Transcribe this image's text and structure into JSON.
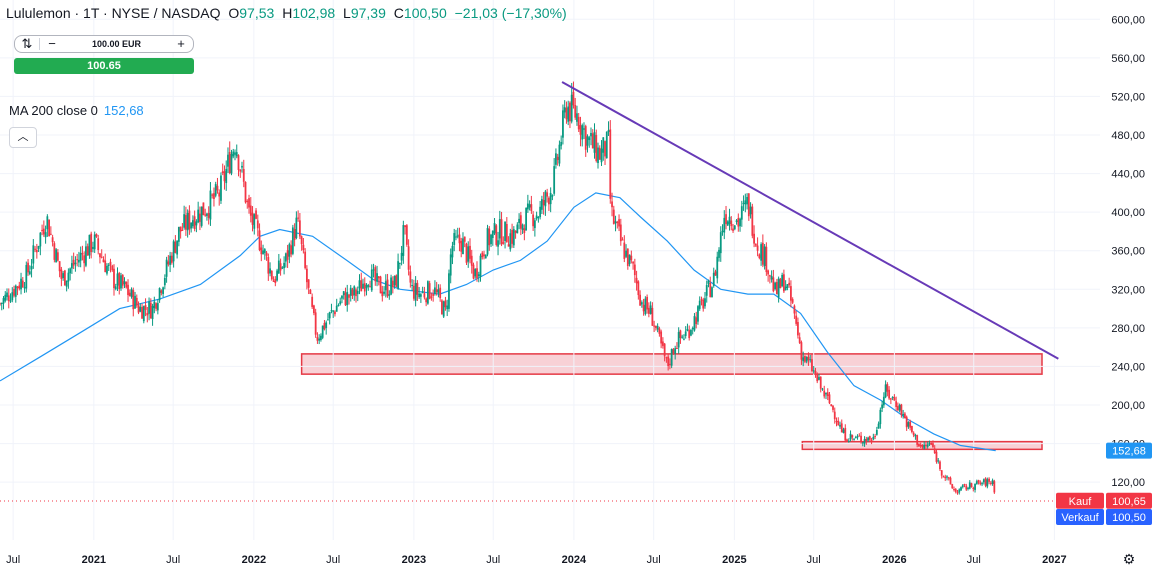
{
  "header": {
    "title": "Lululemon · 1T · NYSE / NASDAQ",
    "o_label": "O",
    "o_value": "97,53",
    "h_label": "H",
    "h_value": "102,98",
    "l_label": "L",
    "l_value": "97,39",
    "c_label": "C",
    "c_value": "100,50",
    "change": "−21,03 (−17,30%)"
  },
  "order": {
    "quantity": "100.00 EUR",
    "minus": "−",
    "plus": "+",
    "buy_value": "100.65"
  },
  "indicator": {
    "label": "MA 200 close 0",
    "value": "152,68"
  },
  "colors": {
    "up": "#089981",
    "down": "#f23645",
    "ma": "#2196f3",
    "trend": "#673ab7",
    "zone_fill": "#f7c9cf",
    "zone_stroke": "#e53945",
    "kauf": "#f23645",
    "verkauf": "#2962ff"
  },
  "chart_data": {
    "type": "line",
    "y_axis": {
      "min": 60,
      "max": 620,
      "ticks": [
        "600,00",
        "560,00",
        "520,00",
        "480,00",
        "440,00",
        "400,00",
        "360,00",
        "320,00",
        "280,00",
        "240,00",
        "200,00",
        "160,00",
        "120,00"
      ]
    },
    "x_axis": {
      "ticks": [
        {
          "label": "Jul",
          "date": "2020-07-01"
        },
        {
          "label": "2021",
          "date": "2021-01-01"
        },
        {
          "label": "Jul",
          "date": "2021-07-01"
        },
        {
          "label": "2022",
          "date": "2022-01-01"
        },
        {
          "label": "Jul",
          "date": "2022-07-01"
        },
        {
          "label": "2023",
          "date": "2023-01-01"
        },
        {
          "label": "Jul",
          "date": "2023-07-01"
        },
        {
          "label": "2024",
          "date": "2024-01-01"
        },
        {
          "label": "Jul",
          "date": "2024-07-01"
        },
        {
          "label": "2025",
          "date": "2025-01-01"
        },
        {
          "label": "Jul",
          "date": "2025-07-01"
        },
        {
          "label": "2026",
          "date": "2026-01-01"
        },
        {
          "label": "Jul",
          "date": "2026-07-01"
        },
        {
          "label": "2027",
          "date": "2027-01-01"
        }
      ]
    },
    "series": [
      {
        "name": "Lululemon",
        "points": [
          [
            "2020-06-01",
            305
          ],
          [
            "2020-08-01",
            335
          ],
          [
            "2020-09-15",
            395
          ],
          [
            "2020-10-20",
            330
          ],
          [
            "2020-11-15",
            345
          ],
          [
            "2021-01-01",
            370
          ],
          [
            "2021-02-15",
            330
          ],
          [
            "2021-03-15",
            320
          ],
          [
            "2021-04-15",
            300
          ],
          [
            "2021-05-15",
            300
          ],
          [
            "2021-06-15",
            340
          ],
          [
            "2021-07-15",
            380
          ],
          [
            "2021-08-15",
            395
          ],
          [
            "2021-09-15",
            405
          ],
          [
            "2021-10-15",
            420
          ],
          [
            "2021-11-20",
            475
          ],
          [
            "2021-12-20",
            400
          ],
          [
            "2022-01-15",
            370
          ],
          [
            "2022-02-15",
            330
          ],
          [
            "2022-03-15",
            350
          ],
          [
            "2022-04-10",
            390
          ],
          [
            "2022-05-10",
            305
          ],
          [
            "2022-05-25",
            270
          ],
          [
            "2022-06-20",
            290
          ],
          [
            "2022-07-20",
            310
          ],
          [
            "2022-08-20",
            315
          ],
          [
            "2022-09-20",
            335
          ],
          [
            "2022-10-20",
            320
          ],
          [
            "2022-11-20",
            325
          ],
          [
            "2022-12-10",
            380
          ],
          [
            "2022-12-25",
            320
          ],
          [
            "2023-01-15",
            315
          ],
          [
            "2023-02-15",
            320
          ],
          [
            "2023-03-15",
            295
          ],
          [
            "2023-03-28",
            365
          ],
          [
            "2023-04-20",
            370
          ],
          [
            "2023-05-20",
            335
          ],
          [
            "2023-06-15",
            370
          ],
          [
            "2023-07-15",
            380
          ],
          [
            "2023-08-15",
            375
          ],
          [
            "2023-09-15",
            395
          ],
          [
            "2023-10-15",
            400
          ],
          [
            "2023-11-15",
            430
          ],
          [
            "2023-12-15",
            510
          ],
          [
            "2024-01-10",
            500
          ],
          [
            "2024-02-01",
            475
          ],
          [
            "2024-03-01",
            460
          ],
          [
            "2024-03-20",
            470
          ],
          [
            "2024-03-25",
            400
          ],
          [
            "2024-04-20",
            365
          ],
          [
            "2024-05-15",
            340
          ],
          [
            "2024-06-05",
            305
          ],
          [
            "2024-06-25",
            295
          ],
          [
            "2024-07-15",
            265
          ],
          [
            "2024-08-01",
            240
          ],
          [
            "2024-08-20",
            265
          ],
          [
            "2024-09-15",
            275
          ],
          [
            "2024-10-15",
            300
          ],
          [
            "2024-11-15",
            330
          ],
          [
            "2024-12-10",
            400
          ],
          [
            "2025-01-10",
            390
          ],
          [
            "2025-02-01",
            410
          ],
          [
            "2025-02-20",
            370
          ],
          [
            "2025-03-15",
            350
          ],
          [
            "2025-04-05",
            315
          ],
          [
            "2025-04-25",
            330
          ],
          [
            "2025-05-15",
            300
          ],
          [
            "2025-06-05",
            250
          ],
          [
            "2025-06-25",
            240
          ],
          [
            "2025-07-20",
            215
          ],
          [
            "2025-08-15",
            195
          ],
          [
            "2025-09-05",
            170
          ],
          [
            "2025-10-01",
            165
          ],
          [
            "2025-10-25",
            165
          ],
          [
            "2025-11-15",
            165
          ],
          [
            "2025-12-10",
            215
          ],
          [
            "2026-01-10",
            200
          ],
          [
            "2026-02-05",
            175
          ],
          [
            "2026-03-05",
            155
          ],
          [
            "2026-03-25",
            160
          ],
          [
            "2026-04-20",
            130
          ],
          [
            "2026-05-20",
            110
          ],
          [
            "2026-06-15",
            115
          ],
          [
            "2026-07-10",
            118
          ],
          [
            "2026-08-15",
            121
          ],
          [
            "2026-08-20",
            100.5
          ]
        ]
      },
      {
        "name": "MA 200 close 0",
        "points": [
          [
            "2020-06-01",
            225
          ],
          [
            "2020-09-01",
            250
          ],
          [
            "2020-12-01",
            275
          ],
          [
            "2021-03-01",
            300
          ],
          [
            "2021-06-01",
            310
          ],
          [
            "2021-09-01",
            325
          ],
          [
            "2021-12-01",
            355
          ],
          [
            "2022-01-15",
            375
          ],
          [
            "2022-03-01",
            382
          ],
          [
            "2022-05-15",
            375
          ],
          [
            "2022-08-01",
            350
          ],
          [
            "2022-10-01",
            330
          ],
          [
            "2022-12-01",
            320
          ],
          [
            "2023-03-01",
            315
          ],
          [
            "2023-05-01",
            325
          ],
          [
            "2023-07-01",
            340
          ],
          [
            "2023-09-01",
            350
          ],
          [
            "2023-11-01",
            370
          ],
          [
            "2024-01-01",
            405
          ],
          [
            "2024-02-20",
            420
          ],
          [
            "2024-04-15",
            415
          ],
          [
            "2024-06-01",
            395
          ],
          [
            "2024-08-01",
            370
          ],
          [
            "2024-10-01",
            340
          ],
          [
            "2024-12-01",
            320
          ],
          [
            "2025-02-01",
            315
          ],
          [
            "2025-04-01",
            315
          ],
          [
            "2025-06-01",
            295
          ],
          [
            "2025-08-01",
            255
          ],
          [
            "2025-10-01",
            220
          ],
          [
            "2025-12-01",
            205
          ],
          [
            "2026-02-01",
            185
          ],
          [
            "2026-04-01",
            170
          ],
          [
            "2026-06-01",
            158
          ],
          [
            "2026-08-20",
            152.68
          ]
        ]
      }
    ],
    "trendline": {
      "from": [
        "2023-12-05",
        535
      ],
      "to": [
        "2027-01-10",
        248
      ]
    },
    "zones": [
      {
        "from": "2022-04-20",
        "to": "2027-01-01",
        "low": 232,
        "high": 253
      },
      {
        "from": "2025-06-05",
        "to": "2027-01-01",
        "low": 154,
        "high": 162
      }
    ],
    "last_price": 100.5,
    "price_labels": [
      {
        "text": "152,68",
        "value": 152.68,
        "kind": "ma"
      },
      {
        "title": "Kauf",
        "text": "100,65",
        "value": 100.65,
        "kind": "kauf"
      },
      {
        "title": "Verkauf",
        "text": "100,50",
        "value": 100.5,
        "kind": "verkauf"
      }
    ]
  }
}
